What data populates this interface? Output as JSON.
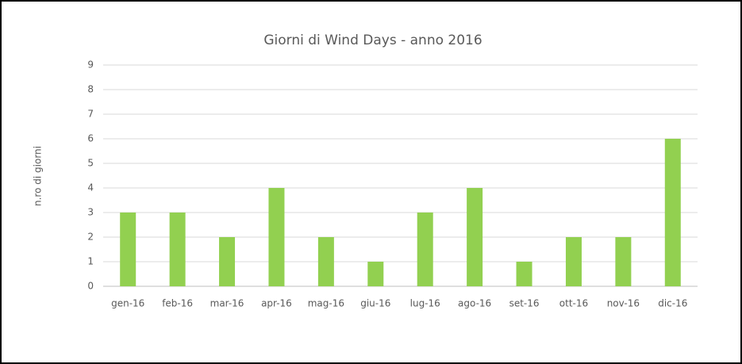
{
  "chart_data": {
    "type": "bar",
    "title": "Giorni di Wind Days - anno 2016",
    "y_label": "n.ro di giorni",
    "categories": [
      "gen-16",
      "feb-16",
      "mar-16",
      "apr-16",
      "mag-16",
      "giu-16",
      "lug-16",
      "ago-16",
      "set-16",
      "ott-16",
      "nov-16",
      "dic-16"
    ],
    "values": [
      3,
      3,
      2,
      4,
      2,
      1,
      3,
      4,
      1,
      2,
      2,
      6
    ],
    "color": "#92d050",
    "ylim": [
      0,
      9
    ],
    "yticks": [
      0,
      1,
      2,
      3,
      4,
      5,
      6,
      7,
      8,
      9
    ],
    "grid": true
  }
}
